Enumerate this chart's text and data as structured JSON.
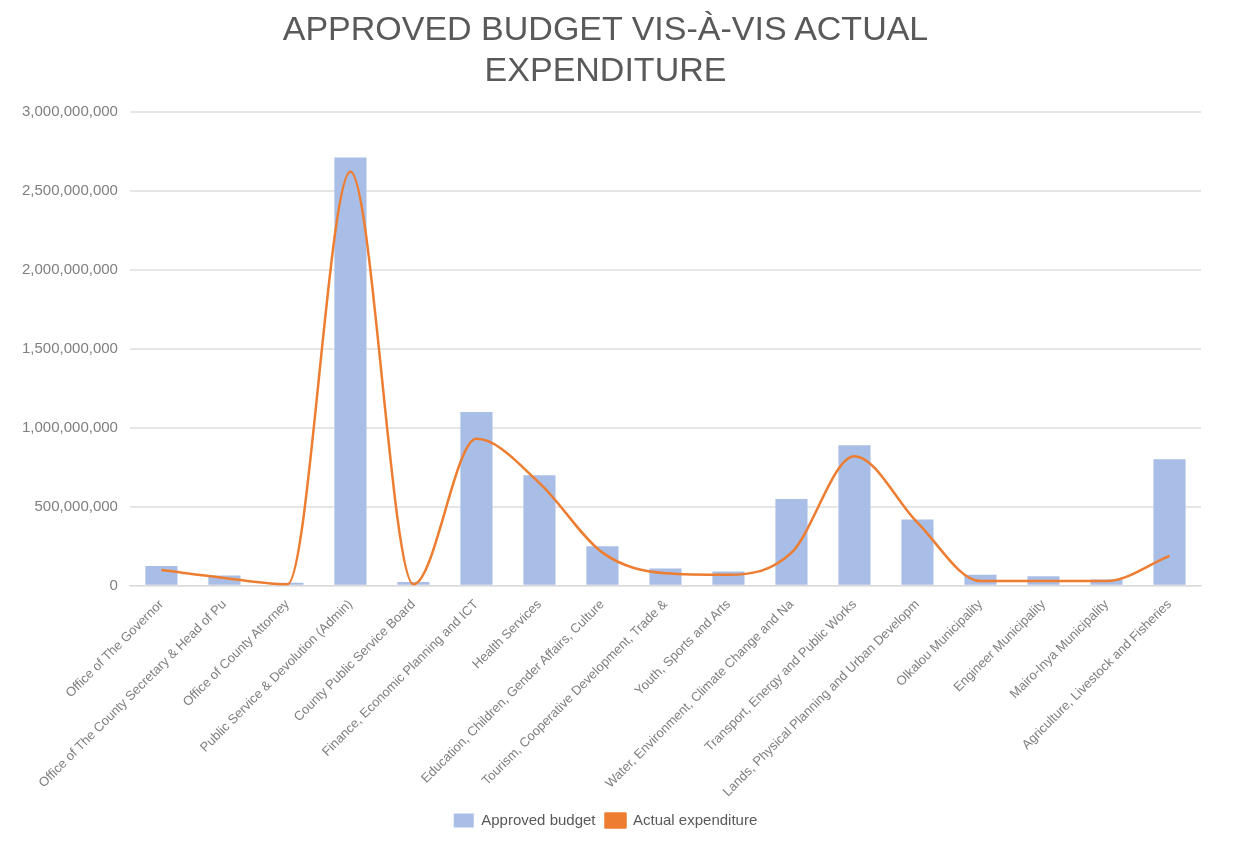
{
  "chart_data": {
    "type": "bar",
    "title": [
      "APPROVED BUDGET VIS-À-VIS ACTUAL",
      "EXPENDITURE"
    ],
    "categories": [
      "Office of The Governor",
      "Office of The County Secretary & Head of Pu",
      "Office of County Attorney",
      "Public Service & Devolution (Admin)",
      "County Public Service Board",
      "Finance, Economic Planning and ICT",
      "Health Services",
      "Education, Children, Gender Affairs, Culture",
      "Tourism, Cooperative Development, Trade &",
      "Youth, Sports and Arts",
      "Water, Environment, Climate Change and Na",
      "Transport, Energy and Public Works",
      "Lands, Physical Planning and Urban Developm",
      "Olkalou Municipality",
      "Engineer Municipality",
      "Mairo-Inya Municipality",
      "Agriculture, Livestock and Fisheries"
    ],
    "series": [
      {
        "name": "Approved budget",
        "color": "#a9bee6",
        "values": [
          125000000,
          65000000,
          20000000,
          2710000000,
          25000000,
          1100000000,
          700000000,
          250000000,
          110000000,
          90000000,
          550000000,
          890000000,
          420000000,
          70000000,
          60000000,
          40000000,
          800000000
        ]
      },
      {
        "name": "Actual expenditure",
        "type": "line",
        "color": "#ed7d31",
        "values": [
          100000000,
          50000000,
          10000000,
          2620000000,
          10000000,
          930000000,
          650000000,
          210000000,
          80000000,
          70000000,
          210000000,
          820000000,
          400000000,
          30000000,
          30000000,
          30000000,
          190000000
        ]
      }
    ],
    "ylim": [
      0,
      3000000000
    ],
    "yticks": [
      0,
      {
        "value": 500000000,
        "label": "500,000,000"
      },
      {
        "value": 1000000000,
        "label": "1,000,000,000"
      },
      {
        "value": 1500000000,
        "label": "1,500,000,000"
      },
      {
        "value": 2000000000,
        "label": "2,000,000,000"
      },
      {
        "value": 2500000000,
        "label": "2,500,000,000"
      },
      {
        "value": 3000000000,
        "label": "3,000,000,000"
      }
    ],
    "grid": "y",
    "legend": "bottom",
    "marker": "none"
  }
}
